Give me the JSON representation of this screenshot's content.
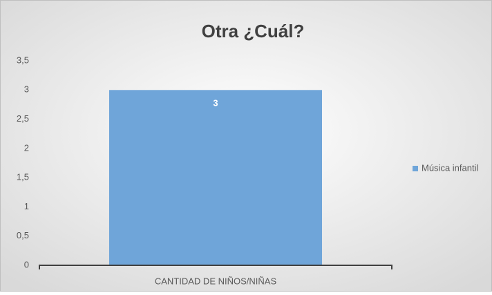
{
  "chart_data": {
    "type": "bar",
    "title": "Otra ¿Cuál?",
    "categories": [
      "CANTIDAD DE NIÑOS/NIÑAS"
    ],
    "series": [
      {
        "name": "Música infantil",
        "color": "#6fa5d9",
        "values": [
          3
        ]
      }
    ],
    "ylim": [
      0,
      3.5
    ],
    "yticks": [
      0,
      {
        "value": 0.5,
        "label": "0,5"
      },
      1,
      {
        "value": 1.5,
        "label": "1,5"
      },
      2,
      {
        "value": 2.5,
        "label": "2,5"
      },
      3,
      {
        "value": 3.5,
        "label": "3,5"
      }
    ],
    "grid": false,
    "legend": "right"
  }
}
